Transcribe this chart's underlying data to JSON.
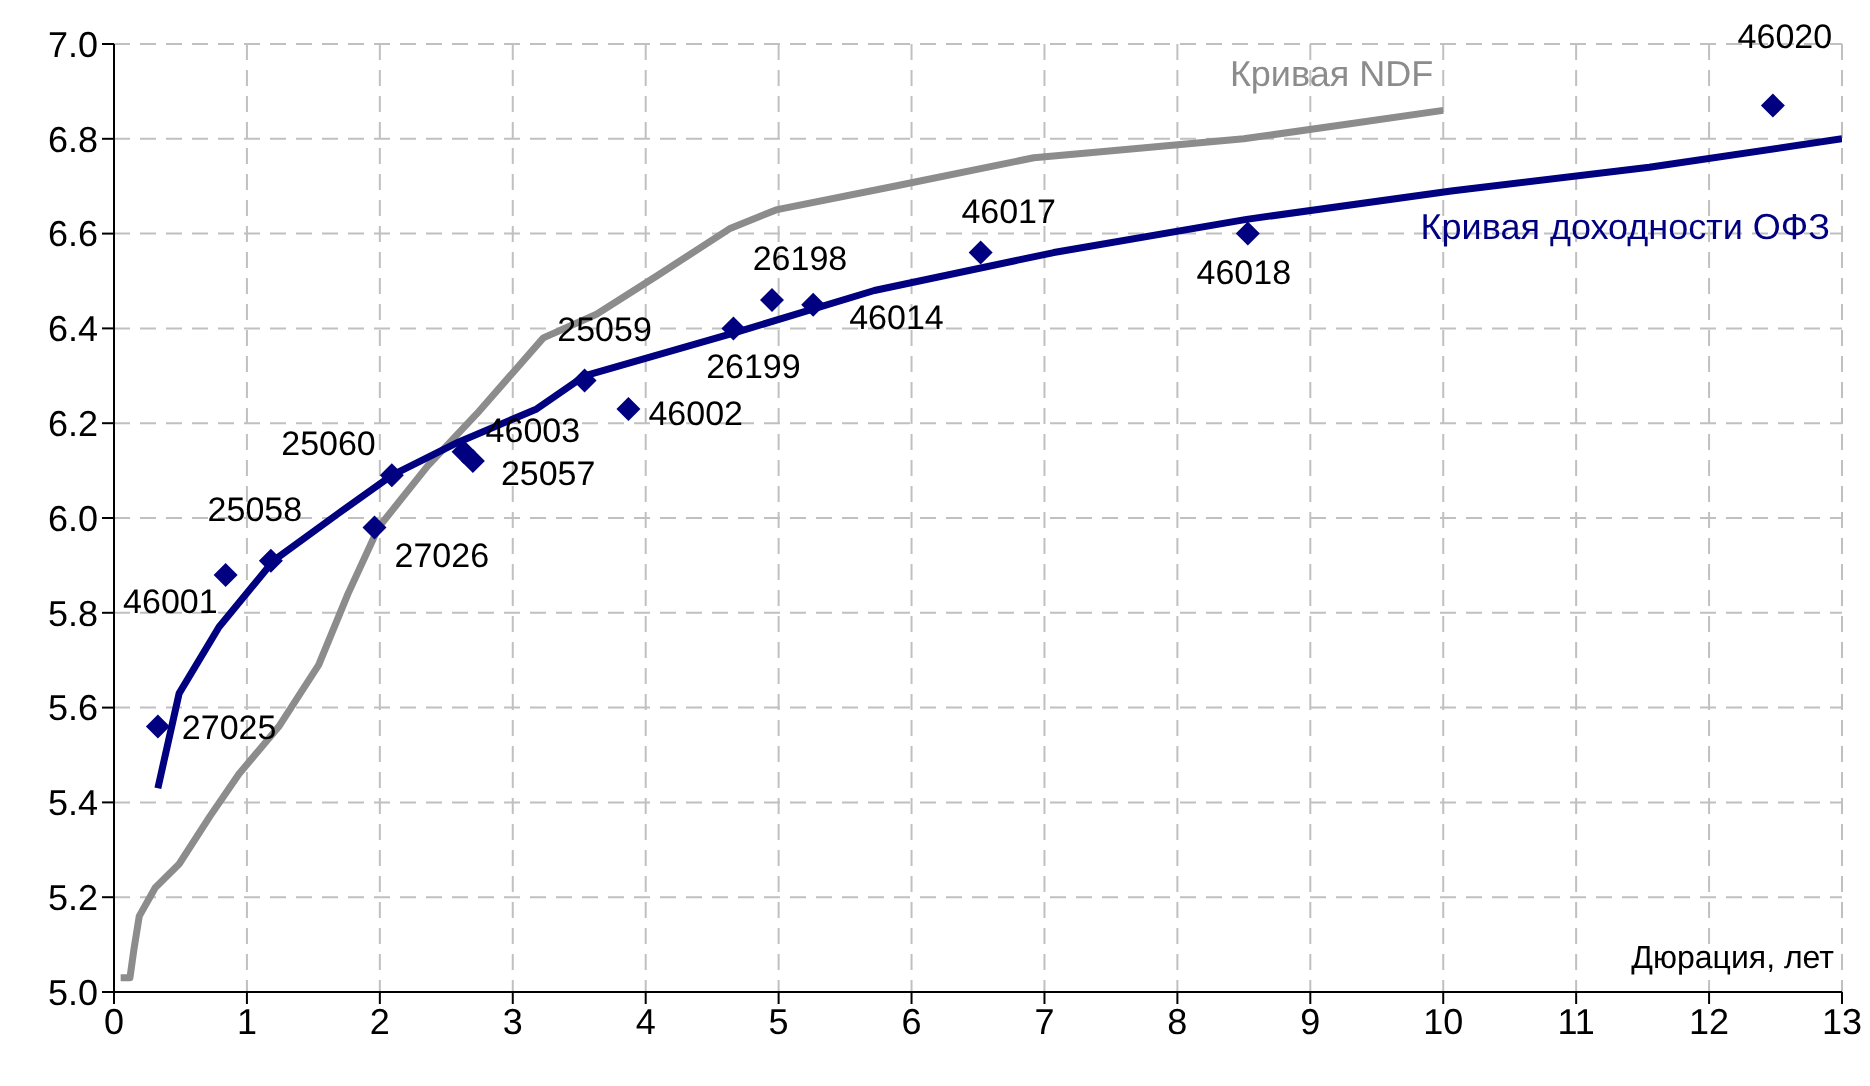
{
  "chart_data": {
    "type": "line",
    "xlabel": "Дюрация, лет",
    "xlim": [
      0,
      13
    ],
    "xticks": [
      0,
      1,
      2,
      3,
      4,
      5,
      6,
      7,
      8,
      9,
      10,
      11,
      12,
      13
    ],
    "ylim": [
      5,
      7
    ],
    "yticks": [
      {
        "value": 5,
        "label": "5.0"
      },
      {
        "value": 5.2,
        "label": "5.2"
      },
      {
        "value": 5.4,
        "label": "5.4"
      },
      {
        "value": 5.6,
        "label": "5.6"
      },
      {
        "value": 5.8,
        "label": "5.8"
      },
      {
        "value": 6,
        "label": "6.0"
      },
      {
        "value": 6.2,
        "label": "6.2"
      },
      {
        "value": 6.4,
        "label": "6.4"
      },
      {
        "value": 6.6,
        "label": "6.6"
      },
      {
        "value": 6.8,
        "label": "6.8"
      },
      {
        "value": 7,
        "label": "7.0"
      }
    ],
    "grid": true,
    "legend": false,
    "line_style": "solid",
    "series": [
      {
        "name": "Кривая NDF",
        "color": "#8c8c8c",
        "x": [
          0.05,
          0.12,
          0.15,
          0.19,
          0.31,
          0.49,
          0.72,
          0.94,
          1.24,
          1.54,
          1.76,
          1.99,
          2.36,
          2.73,
          3.23,
          3.63,
          4.08,
          4.63,
          4.98,
          5.87,
          6.92,
          7.32,
          8.5,
          9.26,
          10
        ],
        "values": [
          5.03,
          5.03,
          5.09,
          5.16,
          5.22,
          5.27,
          5.37,
          5.46,
          5.56,
          5.69,
          5.84,
          5.98,
          6.11,
          6.22,
          6.38,
          6.43,
          6.51,
          6.61,
          6.65,
          6.7,
          6.76,
          6.77,
          6.8,
          6.83,
          6.86
        ]
      },
      {
        "name": "Кривая доходности ОФЗ",
        "color": "#000080",
        "x": [
          0.33,
          0.49,
          0.79,
          1.2,
          1.69,
          2.09,
          2.59,
          3.18,
          3.54,
          4.66,
          5.72,
          7.07,
          8.52,
          10.06,
          11.55,
          13
        ],
        "values": [
          5.43,
          5.63,
          5.77,
          5.91,
          6.01,
          6.09,
          6.16,
          6.23,
          6.3,
          6.39,
          6.48,
          6.56,
          6.63,
          6.69,
          6.74,
          6.8
        ]
      },
      {
        "type": "scatter",
        "marker": "diamond",
        "color": "#000080",
        "x": [
          0.33,
          0.84,
          1.18,
          2.09,
          1.96,
          2.63,
          2.7,
          3.54,
          3.87,
          4.66,
          4.95,
          5.26,
          6.52,
          8.53,
          12.48
        ],
        "values": [
          5.56,
          5.88,
          5.91,
          6.09,
          5.98,
          6.14,
          6.12,
          6.29,
          6.23,
          6.4,
          6.46,
          6.45,
          6.56,
          6.6,
          6.87
        ]
      }
    ],
    "annotations": [
      {
        "text": "27025",
        "x": 0.33,
        "y": 5.56
      },
      {
        "text": "46001",
        "x": 0.84,
        "y": 5.88
      },
      {
        "text": "25058",
        "x": 1.18,
        "y": 5.91
      },
      {
        "text": "25060",
        "x": 2.09,
        "y": 6.09
      },
      {
        "text": "27026",
        "x": 1.96,
        "y": 5.98
      },
      {
        "text": "46003",
        "x": 2.63,
        "y": 6.14
      },
      {
        "text": "25057",
        "x": 2.7,
        "y": 6.12
      },
      {
        "text": "25059",
        "x": 3.54,
        "y": 6.29
      },
      {
        "text": "46002",
        "x": 3.87,
        "y": 6.23
      },
      {
        "text": "26199",
        "x": 4.66,
        "y": 6.4
      },
      {
        "text": "26198",
        "x": 4.95,
        "y": 6.46
      },
      {
        "text": "46014",
        "x": 5.26,
        "y": 6.45
      },
      {
        "text": "46017",
        "x": 6.52,
        "y": 6.56
      },
      {
        "text": "46018",
        "x": 8.53,
        "y": 6.6
      },
      {
        "text": "46020",
        "x": 12.48,
        "y": 6.87
      }
    ]
  }
}
